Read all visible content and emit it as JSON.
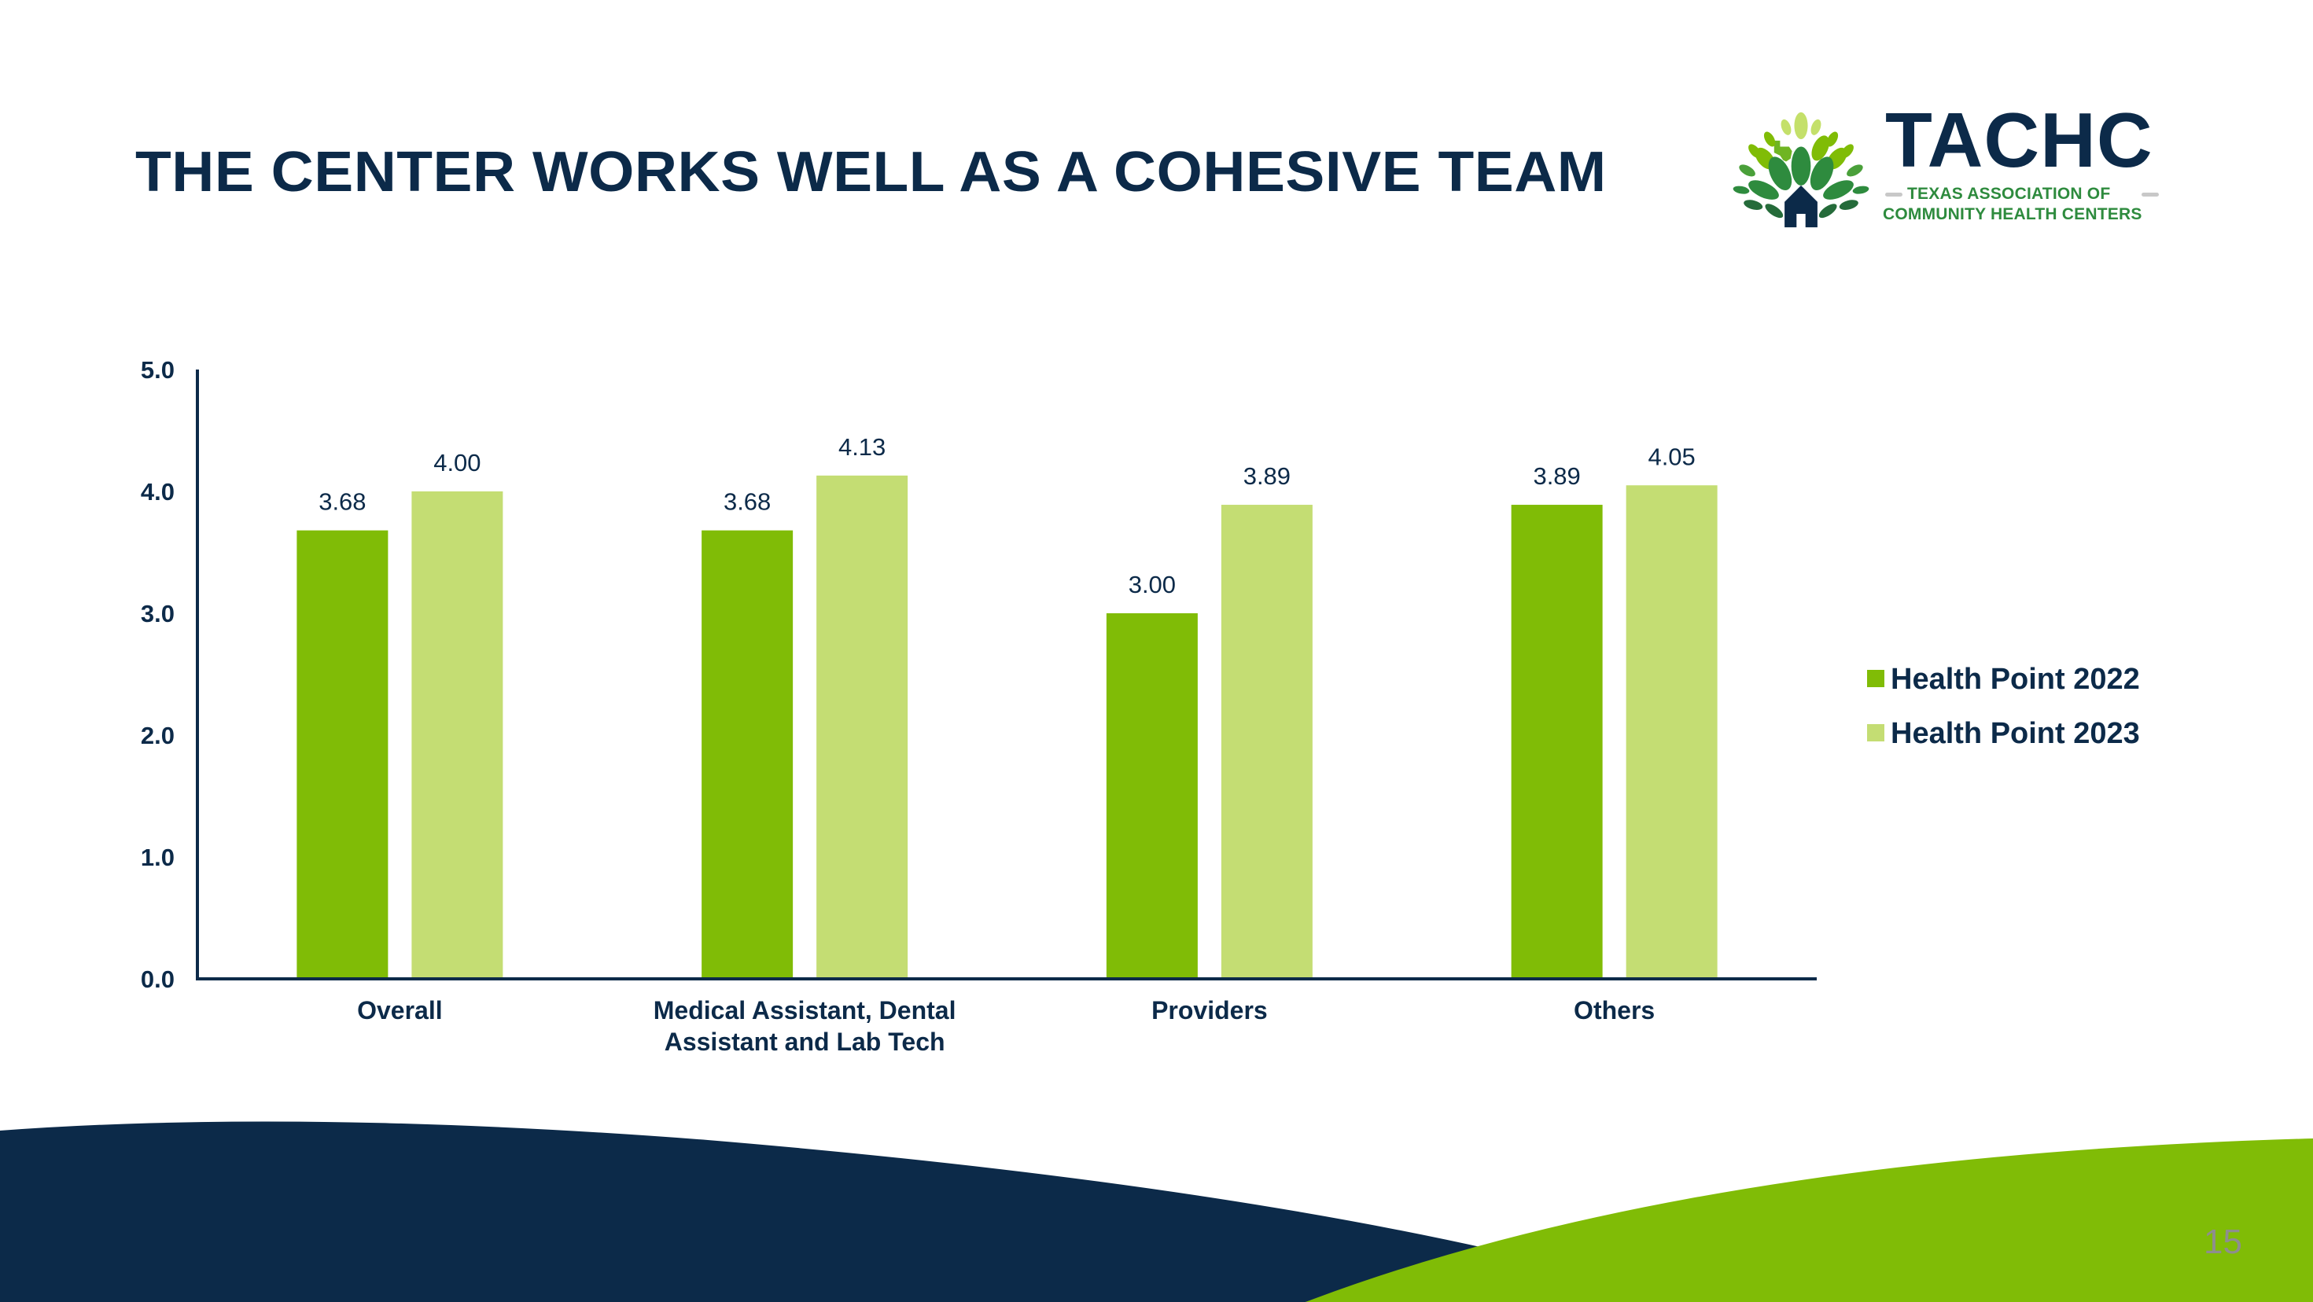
{
  "slide": {
    "title": "THE CENTER WORKS WELL AS A COHESIVE TEAM",
    "page_number": "15"
  },
  "logo": {
    "wordmark": "TACHC",
    "subtitle_line1": "TEXAS ASSOCIATION OF",
    "subtitle_line2": "COMMUNITY HEALTH CENTERS",
    "icon": "tree-house-texas-logo-icon"
  },
  "colors": {
    "navy": "#0c2a49",
    "series_2022": "#80bc06",
    "series_2023": "#c4dd73",
    "footer_navy": "#0c2a49",
    "footer_green": "#80bc06",
    "page_number": "#8e8e8e"
  },
  "chart_data": {
    "type": "bar",
    "title": "THE CENTER WORKS WELL AS A COHESIVE TEAM",
    "xlabel": "",
    "ylabel": "",
    "ylim": [
      0,
      5
    ],
    "yticks": [
      "0.0",
      "1.0",
      "2.0",
      "3.0",
      "4.0",
      "5.0"
    ],
    "grid": false,
    "legend_position": "right",
    "categories": [
      [
        "Overall"
      ],
      [
        "Medical Assistant, Dental",
        "Assistant and Lab Tech"
      ],
      [
        "Providers"
      ],
      [
        "Others"
      ]
    ],
    "series": [
      {
        "name": "Health Point 2022",
        "color": "#80bc06",
        "values": [
          3.68,
          3.68,
          3.0,
          3.89
        ],
        "labels": [
          "3.68",
          "3.68",
          "3.00",
          "3.89"
        ]
      },
      {
        "name": "Health Point 2023",
        "color": "#c4dd73",
        "values": [
          4.0,
          4.13,
          3.89,
          4.05
        ],
        "labels": [
          "4.00",
          "4.13",
          "3.89",
          "4.05"
        ]
      }
    ]
  }
}
